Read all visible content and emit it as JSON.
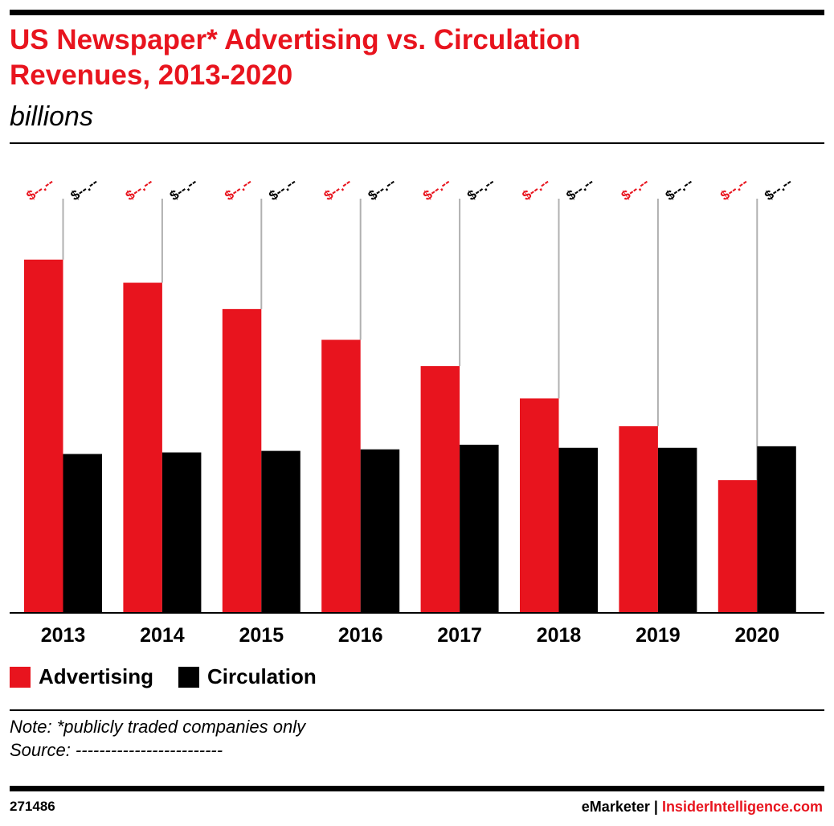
{
  "header": {
    "title_line1": "US Newspaper* Advertising vs. Circulation",
    "title_line2": "Revenues, 2013-2020",
    "subtitle": "billions"
  },
  "chart_data": {
    "type": "bar",
    "categories": [
      "2013",
      "2014",
      "2015",
      "2016",
      "2017",
      "2018",
      "2019",
      "2020"
    ],
    "series": [
      {
        "name": "Advertising",
        "color": "#e8141e",
        "values": [
          22.9,
          21.4,
          19.7,
          17.7,
          16.0,
          13.9,
          12.1,
          8.6
        ],
        "labels": [
          "$--.--",
          "$--.--",
          "$--.--",
          "$--.--",
          "$--.--",
          "$--.--",
          "$--.--",
          "$--.--"
        ]
      },
      {
        "name": "Circulation",
        "color": "#000000",
        "values": [
          10.3,
          10.4,
          10.5,
          10.6,
          10.9,
          10.7,
          10.7,
          10.8
        ],
        "labels": [
          "$--.--",
          "$--.--",
          "$--.--",
          "$--.--",
          "$--.--",
          "$--.--",
          "$--.--",
          "$--.--"
        ]
      }
    ],
    "ylim": [
      0,
      26
    ],
    "grid": false,
    "legend": "bottom-left"
  },
  "legend": {
    "advertising": "Advertising",
    "circulation": "Circulation"
  },
  "notes": {
    "note": "Note: *publicly traded companies only",
    "source": "Source: -------------------------"
  },
  "footer": {
    "id": "271486",
    "brand1": "eMarketer",
    "sep": "|",
    "brand2": "InsiderIntelligence.com"
  }
}
